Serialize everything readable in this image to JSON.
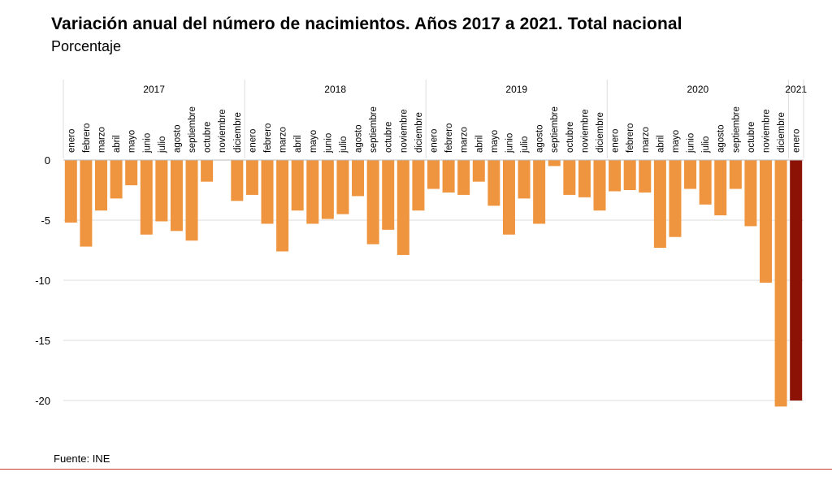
{
  "header": {
    "title": "Variación anual del número de nacimientos. Años 2017 a 2021. Total nacional",
    "subtitle": "Porcentaje"
  },
  "footer": {
    "source": "Fuente: INE"
  },
  "colors": {
    "bar": "#f0953f",
    "bar_highlight": "#8b1205",
    "grid": "#dddddd",
    "rule": "#c8452a"
  },
  "chart_data": {
    "type": "bar",
    "title": "Variación anual del número de nacimientos. Años 2017 a 2021. Total nacional",
    "subtitle": "Porcentaje",
    "ylabel": "",
    "ylim": [
      -20,
      0
    ],
    "yticks": [
      0,
      -5,
      -10,
      -15,
      -20
    ],
    "grid": true,
    "years": [
      {
        "label": "2017",
        "months": 12
      },
      {
        "label": "2018",
        "months": 12
      },
      {
        "label": "2019",
        "months": 12
      },
      {
        "label": "2020",
        "months": 12
      },
      {
        "label": "2021",
        "months": 1
      }
    ],
    "categories": [
      "enero",
      "febrero",
      "marzo",
      "abril",
      "mayo",
      "junio",
      "julio",
      "agosto",
      "septiembre",
      "octubre",
      "noviembre",
      "diciembre",
      "enero",
      "febrero",
      "marzo",
      "abril",
      "mayo",
      "junio",
      "julio",
      "agosto",
      "septiembre",
      "octubre",
      "noviembre",
      "diciembre",
      "enero",
      "febrero",
      "marzo",
      "abril",
      "mayo",
      "junio",
      "julio",
      "agosto",
      "septiembre",
      "octubre",
      "noviembre",
      "diciembre",
      "enero",
      "febrero",
      "marzo",
      "abril",
      "mayo",
      "junio",
      "julio",
      "agosto",
      "septiembre",
      "octubre",
      "noviembre",
      "diciembre",
      "enero"
    ],
    "values": [
      -5.2,
      -7.2,
      -4.2,
      -3.2,
      -2.1,
      -6.2,
      -5.1,
      -5.9,
      -6.7,
      -1.8,
      0,
      -3.4,
      -2.9,
      -5.3,
      -7.6,
      -4.2,
      -5.3,
      -4.9,
      -4.5,
      -3.0,
      -7.0,
      -5.8,
      -7.9,
      -4.2,
      -2.4,
      -2.7,
      -2.9,
      -1.8,
      -3.8,
      -6.2,
      -3.2,
      -5.3,
      -0.5,
      -2.9,
      -3.1,
      -4.2,
      -2.6,
      -2.5,
      -2.7,
      -7.3,
      -6.4,
      -2.4,
      -3.7,
      -4.6,
      -2.4,
      -5.5,
      -10.2,
      -20.5,
      -20.0
    ],
    "highlight_index": 48
  }
}
